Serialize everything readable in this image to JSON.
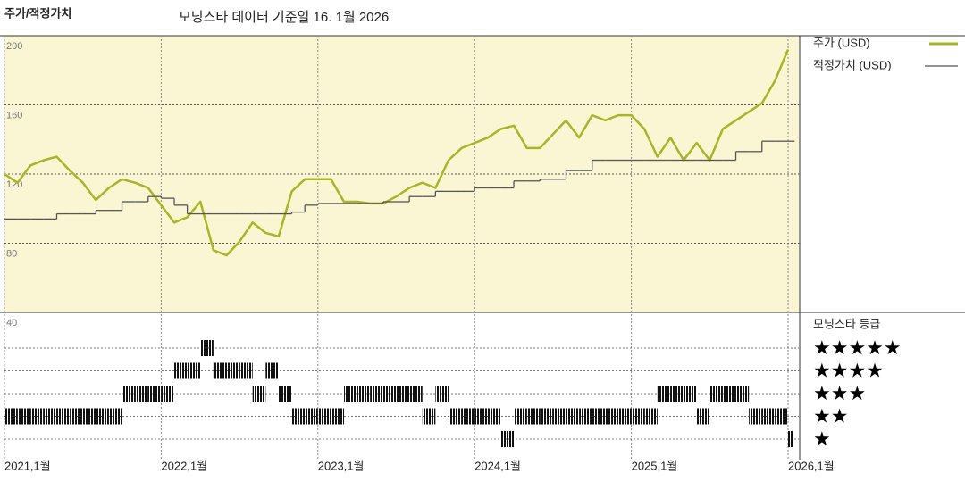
{
  "title": "주가/적정가치",
  "subtitle": "모닝스타 데이터 기준일 16. 1월 2026",
  "chart_data": [
    {
      "type": "line",
      "x": [
        "2021-01",
        "2021-02",
        "2021-03",
        "2021-04",
        "2021-05",
        "2021-06",
        "2021-07",
        "2021-08",
        "2021-09",
        "2021-10",
        "2021-11",
        "2021-12",
        "2022-01",
        "2022-02",
        "2022-03",
        "2022-04",
        "2022-05",
        "2022-06",
        "2022-07",
        "2022-08",
        "2022-09",
        "2022-10",
        "2022-11",
        "2022-12",
        "2023-01",
        "2023-02",
        "2023-03",
        "2023-04",
        "2023-05",
        "2023-06",
        "2023-07",
        "2023-08",
        "2023-09",
        "2023-10",
        "2023-11",
        "2023-12",
        "2024-01",
        "2024-02",
        "2024-03",
        "2024-04",
        "2024-05",
        "2024-06",
        "2024-07",
        "2024-08",
        "2024-09",
        "2024-10",
        "2024-11",
        "2024-12",
        "2025-01",
        "2025-02",
        "2025-03",
        "2025-04",
        "2025-05",
        "2025-06",
        "2025-07",
        "2025-08",
        "2025-09",
        "2025-10",
        "2025-11",
        "2025-12",
        "2026-01"
      ],
      "series": [
        {
          "name": "주가 (USD)",
          "color": "#a9b521",
          "values": [
            120,
            115,
            125,
            128,
            130,
            122,
            115,
            105,
            112,
            117,
            115,
            112,
            102,
            92,
            95,
            104,
            76,
            73,
            81,
            92,
            86,
            84,
            110,
            117,
            117,
            117,
            104,
            104,
            103,
            103,
            107,
            112,
            115,
            112,
            128,
            135,
            138,
            141,
            146,
            148,
            135,
            135,
            143,
            151,
            141,
            154,
            151,
            154,
            154,
            146,
            130,
            141,
            128,
            138,
            128,
            146,
            151,
            156,
            161,
            174,
            192
          ]
        },
        {
          "name": "적정가치 (USD)",
          "color": "#555555",
          "step": true,
          "values": [
            94,
            94,
            94,
            94,
            97,
            97,
            97,
            99,
            99,
            104,
            104,
            107,
            106,
            102,
            97,
            97,
            97,
            97,
            97,
            97,
            97,
            97,
            98,
            102,
            103,
            103,
            103,
            103,
            103,
            104,
            104,
            107,
            107,
            110,
            110,
            110,
            112,
            112,
            112,
            116,
            116,
            117,
            117,
            122,
            122,
            128,
            128,
            128,
            128,
            128,
            128,
            128,
            128,
            128,
            128,
            128,
            133,
            133,
            139,
            139,
            139
          ]
        }
      ],
      "xlim": [
        "2021-01",
        "2026-01"
      ],
      "xticks": [
        {
          "value": "2021-01",
          "label": "2021,1월"
        },
        {
          "value": "2022-01",
          "label": "2022,1월"
        },
        {
          "value": "2023-01",
          "label": "2023,1월"
        },
        {
          "value": "2024-01",
          "label": "2024,1월"
        },
        {
          "value": "2025-01",
          "label": "2025,1월"
        },
        {
          "value": "2026-01",
          "label": "2026,1월"
        }
      ],
      "ylim": [
        40,
        200
      ],
      "yticks": [
        40,
        80,
        120,
        160,
        200
      ],
      "grid": true,
      "background": "#faf6d3"
    },
    {
      "type": "rating",
      "title": "모닝스타 등급",
      "color": "#111111",
      "values": [
        2,
        2,
        2,
        2,
        2,
        2,
        2,
        2,
        2,
        3,
        3,
        3,
        3,
        4,
        4,
        5,
        4,
        4,
        4,
        3,
        4,
        3,
        2,
        2,
        2,
        2,
        3,
        3,
        3,
        3,
        3,
        3,
        2,
        3,
        2,
        2,
        2,
        2,
        1,
        2,
        2,
        2,
        2,
        2,
        2,
        2,
        2,
        2,
        2,
        2,
        3,
        3,
        3,
        2,
        3,
        3,
        3,
        2,
        2,
        2,
        1
      ],
      "ylim": [
        1,
        5
      ],
      "yticks": [
        {
          "value": 1,
          "label": "★"
        },
        {
          "value": 2,
          "label": "★★"
        },
        {
          "value": 3,
          "label": "★★★"
        },
        {
          "value": 4,
          "label": "★★★★"
        },
        {
          "value": 5,
          "label": "★★★★★"
        }
      ]
    }
  ]
}
